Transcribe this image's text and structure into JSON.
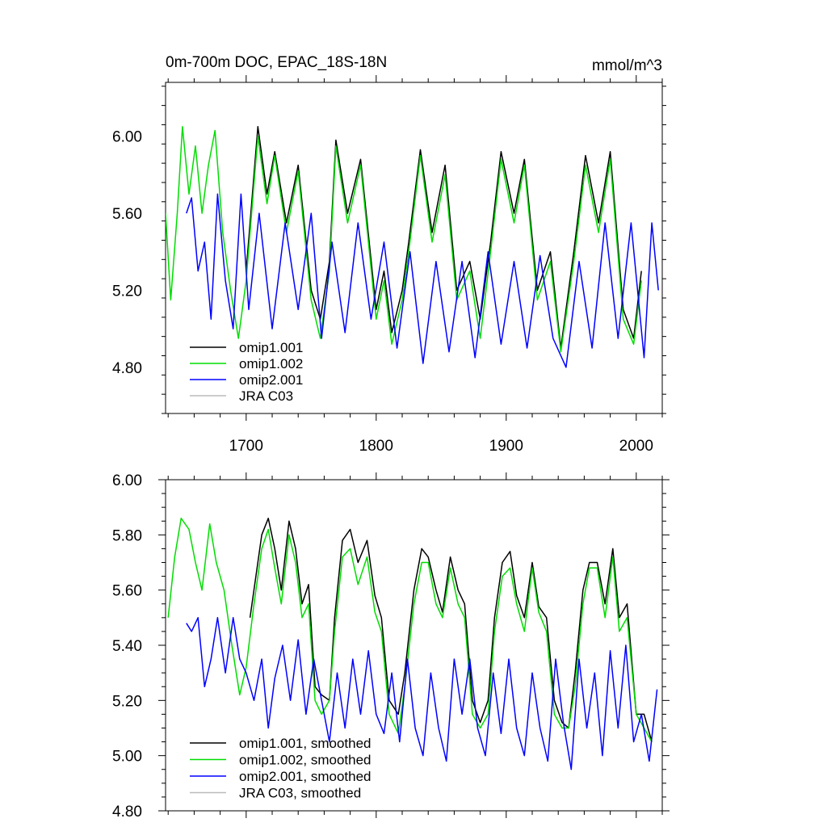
{
  "chart_data": [
    {
      "type": "line",
      "title": "0m-700m DOC, EPAC_18S-18N",
      "units": "mmol/m^3",
      "xlabel": "",
      "ylabel": "",
      "xlim": [
        1638,
        2020
      ],
      "ylim": [
        4.56,
        6.28
      ],
      "xticks": [
        1700,
        1800,
        1900,
        2000
      ],
      "xtick_labels": [
        "1700",
        "1800",
        "1900",
        "2000"
      ],
      "yticks": [
        4.8,
        5.2,
        5.6,
        6.0
      ],
      "ytick_labels": [
        "4.80",
        "5.20",
        "5.60",
        "6.00"
      ],
      "legend": [
        "omip1.001",
        "omip1.002",
        "omip2.001",
        "JRA C03"
      ],
      "series": [
        {
          "name": "omip1.001",
          "color": "#000000",
          "x": [
            1700,
            1709,
            1716,
            1722,
            1731,
            1740,
            1750,
            1757,
            1764,
            1769,
            1778,
            1788,
            1800,
            1806,
            1812,
            1820,
            1825,
            1834,
            1843,
            1853,
            1862,
            1872,
            1880,
            1888,
            1896,
            1906,
            1914,
            1924,
            1934,
            1942,
            1952,
            1961,
            1971,
            1980,
            1990,
            1998,
            2004
          ],
          "y": [
            5.3,
            6.05,
            5.7,
            5.92,
            5.55,
            5.85,
            5.2,
            5.05,
            5.35,
            5.98,
            5.6,
            5.88,
            5.1,
            5.3,
            4.98,
            5.2,
            5.45,
            5.93,
            5.5,
            5.85,
            5.2,
            5.35,
            5.05,
            5.45,
            5.92,
            5.6,
            5.88,
            5.2,
            5.4,
            4.9,
            5.4,
            5.9,
            5.55,
            5.92,
            5.1,
            4.95,
            5.3
          ]
        },
        {
          "name": "omip1.002",
          "color": "#00dd00",
          "x": [
            1638,
            1642,
            1647,
            1651,
            1656,
            1661,
            1666,
            1671,
            1676,
            1682,
            1688,
            1694,
            1700,
            1709,
            1716,
            1722,
            1731,
            1740,
            1750,
            1757,
            1764,
            1769,
            1778,
            1788,
            1800,
            1806,
            1812,
            1820,
            1825,
            1834,
            1843,
            1853,
            1862,
            1872,
            1880,
            1888,
            1896,
            1906,
            1914,
            1924,
            1934,
            1942,
            1952,
            1961,
            1971,
            1980,
            1990,
            1998,
            2004
          ],
          "y": [
            5.6,
            5.15,
            5.6,
            6.05,
            5.7,
            5.95,
            5.6,
            5.85,
            6.03,
            5.5,
            5.2,
            4.95,
            5.25,
            6.0,
            5.65,
            5.9,
            5.5,
            5.82,
            5.15,
            4.95,
            5.3,
            5.95,
            5.55,
            5.85,
            5.05,
            5.25,
            4.92,
            5.15,
            5.4,
            5.9,
            5.45,
            5.8,
            5.15,
            5.3,
            4.95,
            5.4,
            5.88,
            5.55,
            5.85,
            5.15,
            5.35,
            4.88,
            5.35,
            5.85,
            5.5,
            5.88,
            5.05,
            4.92,
            5.25
          ]
        },
        {
          "name": "omip2.001",
          "color": "#0000ff",
          "x": [
            1654,
            1658,
            1663,
            1668,
            1673,
            1678,
            1684,
            1690,
            1696,
            1702,
            1710,
            1720,
            1730,
            1740,
            1750,
            1758,
            1766,
            1776,
            1786,
            1796,
            1806,
            1816,
            1826,
            1836,
            1846,
            1856,
            1866,
            1876,
            1886,
            1896,
            1906,
            1916,
            1926,
            1936,
            1946,
            1956,
            1966,
            1976,
            1986,
            1996,
            2006,
            2012,
            2017
          ],
          "y": [
            5.6,
            5.68,
            5.3,
            5.45,
            5.05,
            5.7,
            5.25,
            5.0,
            5.7,
            5.1,
            5.6,
            5.0,
            5.55,
            5.1,
            5.6,
            4.95,
            5.45,
            4.98,
            5.55,
            5.05,
            5.45,
            4.9,
            5.4,
            4.82,
            5.35,
            4.88,
            5.35,
            4.85,
            5.4,
            4.92,
            5.35,
            4.9,
            5.38,
            4.95,
            4.8,
            5.35,
            4.9,
            5.55,
            4.95,
            5.55,
            4.85,
            5.55,
            5.2
          ]
        },
        {
          "name": "JRA C03",
          "color": "#bbbbbb",
          "x": [],
          "y": []
        }
      ]
    },
    {
      "type": "line",
      "title": "",
      "xlabel": "",
      "ylabel": "",
      "xlim": [
        1638,
        2020
      ],
      "ylim": [
        4.8,
        6.0
      ],
      "xticks": [
        1700,
        1800,
        1900,
        2000
      ],
      "yticks": [
        4.8,
        5.0,
        5.2,
        5.4,
        5.6,
        5.8,
        6.0
      ],
      "ytick_labels": [
        "4.80",
        "5.00",
        "5.20",
        "5.40",
        "5.60",
        "5.80",
        "6.00"
      ],
      "legend": [
        "omip1.001, smoothed",
        "omip1.002, smoothed",
        "omip2.001, smoothed",
        "JRA C03, smoothed"
      ],
      "series": [
        {
          "name": "omip1.001, smoothed",
          "color": "#000000",
          "x": [
            1703,
            1712,
            1717,
            1722,
            1727,
            1733,
            1738,
            1743,
            1748,
            1753,
            1758,
            1764,
            1768,
            1774,
            1780,
            1786,
            1793,
            1799,
            1804,
            1810,
            1817,
            1822,
            1829,
            1835,
            1840,
            1846,
            1851,
            1857,
            1863,
            1868,
            1874,
            1880,
            1886,
            1891,
            1897,
            1903,
            1908,
            1914,
            1920,
            1925,
            1931,
            1937,
            1943,
            1948,
            1953,
            1959,
            1964,
            1970,
            1976,
            1982,
            1987,
            1993,
            2000,
            2006,
            2012
          ],
          "y": [
            5.5,
            5.8,
            5.86,
            5.75,
            5.6,
            5.85,
            5.75,
            5.55,
            5.62,
            5.25,
            5.22,
            5.2,
            5.5,
            5.78,
            5.82,
            5.7,
            5.78,
            5.58,
            5.5,
            5.2,
            5.15,
            5.3,
            5.6,
            5.75,
            5.72,
            5.6,
            5.52,
            5.72,
            5.6,
            5.55,
            5.2,
            5.12,
            5.2,
            5.5,
            5.7,
            5.74,
            5.58,
            5.5,
            5.7,
            5.54,
            5.5,
            5.2,
            5.12,
            5.1,
            5.3,
            5.6,
            5.7,
            5.7,
            5.55,
            5.75,
            5.5,
            5.55,
            5.15,
            5.15,
            5.05
          ]
        },
        {
          "name": "omip1.002, smoothed",
          "color": "#00dd00",
          "x": [
            1640,
            1645,
            1650,
            1656,
            1661,
            1666,
            1672,
            1677,
            1683,
            1689,
            1695,
            1700,
            1706,
            1712,
            1717,
            1722,
            1727,
            1733,
            1738,
            1743,
            1748,
            1753,
            1758,
            1764,
            1768,
            1774,
            1780,
            1786,
            1793,
            1799,
            1804,
            1810,
            1817,
            1822,
            1829,
            1835,
            1840,
            1846,
            1851,
            1857,
            1863,
            1868,
            1874,
            1880,
            1886,
            1891,
            1897,
            1903,
            1908,
            1914,
            1920,
            1925,
            1931,
            1937,
            1943,
            1948,
            1953,
            1959,
            1964,
            1970,
            1976,
            1982,
            1987,
            1993,
            2000,
            2006,
            2012
          ],
          "y": [
            5.5,
            5.72,
            5.86,
            5.82,
            5.7,
            5.6,
            5.84,
            5.7,
            5.6,
            5.4,
            5.22,
            5.32,
            5.55,
            5.75,
            5.82,
            5.68,
            5.55,
            5.8,
            5.7,
            5.5,
            5.55,
            5.2,
            5.15,
            5.2,
            5.45,
            5.72,
            5.75,
            5.62,
            5.72,
            5.52,
            5.45,
            5.15,
            5.08,
            5.25,
            5.55,
            5.7,
            5.7,
            5.55,
            5.5,
            5.68,
            5.55,
            5.5,
            5.15,
            5.1,
            5.15,
            5.45,
            5.65,
            5.68,
            5.55,
            5.45,
            5.68,
            5.52,
            5.45,
            5.15,
            5.1,
            5.1,
            5.25,
            5.55,
            5.68,
            5.68,
            5.5,
            5.72,
            5.45,
            5.5,
            5.15,
            5.1,
            5.05
          ]
        },
        {
          "name": "omip2.001, smoothed",
          "color": "#0000ff",
          "x": [
            1654,
            1658,
            1663,
            1668,
            1673,
            1678,
            1684,
            1690,
            1695,
            1700,
            1706,
            1712,
            1717,
            1722,
            1728,
            1734,
            1740,
            1746,
            1752,
            1758,
            1764,
            1770,
            1776,
            1782,
            1788,
            1794,
            1800,
            1806,
            1812,
            1818,
            1824,
            1830,
            1836,
            1842,
            1848,
            1854,
            1860,
            1866,
            1872,
            1878,
            1884,
            1890,
            1896,
            1902,
            1908,
            1914,
            1920,
            1926,
            1932,
            1938,
            1944,
            1950,
            1956,
            1962,
            1968,
            1974,
            1980,
            1986,
            1992,
            1998,
            2004,
            2010,
            2016
          ],
          "y": [
            5.48,
            5.45,
            5.5,
            5.25,
            5.35,
            5.5,
            5.3,
            5.5,
            5.35,
            5.3,
            5.2,
            5.35,
            5.1,
            5.28,
            5.4,
            5.2,
            5.42,
            5.15,
            5.35,
            5.2,
            5.05,
            5.3,
            5.1,
            5.35,
            5.15,
            5.38,
            5.15,
            5.08,
            5.3,
            5.05,
            5.35,
            5.1,
            5.0,
            5.3,
            5.1,
            4.98,
            5.35,
            5.15,
            5.35,
            5.1,
            5.0,
            5.3,
            5.08,
            5.35,
            5.1,
            5.0,
            5.3,
            5.1,
            4.98,
            5.35,
            5.12,
            4.95,
            5.35,
            5.1,
            5.3,
            5.0,
            5.38,
            5.1,
            5.4,
            5.05,
            5.15,
            4.98,
            5.24
          ]
        },
        {
          "name": "JRA C03, smoothed",
          "color": "#bbbbbb",
          "x": [],
          "y": []
        }
      ]
    }
  ]
}
